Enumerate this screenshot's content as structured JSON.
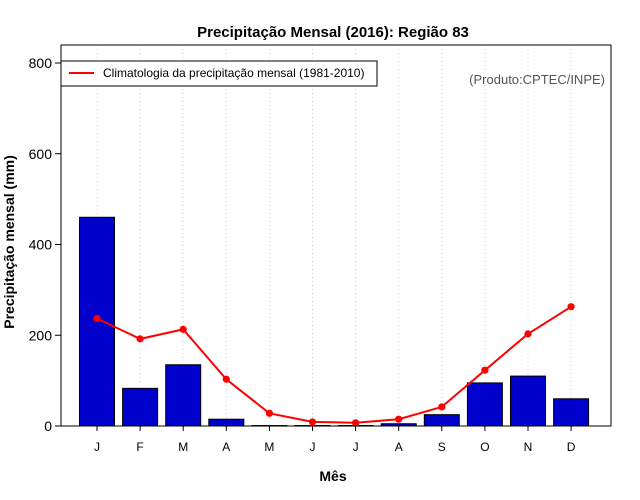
{
  "chart_data": {
    "type": "bar",
    "title": "Precipitação Mensal (2016): Região 83",
    "xlabel": "Mês",
    "ylabel": "Precipitação mensal (mm)",
    "ylim": [
      0,
      800
    ],
    "yticks": [
      0,
      200,
      400,
      600,
      800
    ],
    "grid": "vertical dotted",
    "categories": [
      "J",
      "F",
      "M",
      "A",
      "M",
      "J",
      "J",
      "A",
      "S",
      "O",
      "N",
      "D"
    ],
    "series": [
      {
        "name": "Precipitação mensal (2016)",
        "type": "bar",
        "color": "#0000cd",
        "values": [
          460,
          83,
          135,
          15,
          1,
          1,
          1,
          5,
          25,
          95,
          110,
          60
        ]
      },
      {
        "name": "Climatologia da precipitação mensal (1981-2010)",
        "type": "line",
        "color": "#ff0000",
        "values": [
          237,
          192,
          213,
          103,
          28,
          9,
          7,
          15,
          42,
          123,
          203,
          263
        ]
      }
    ],
    "legend": {
      "position": "top-left",
      "label": "Climatologia da precipitação mensal (1981-2010)"
    },
    "credit": "(Produto:CPTEC/INPE)"
  }
}
